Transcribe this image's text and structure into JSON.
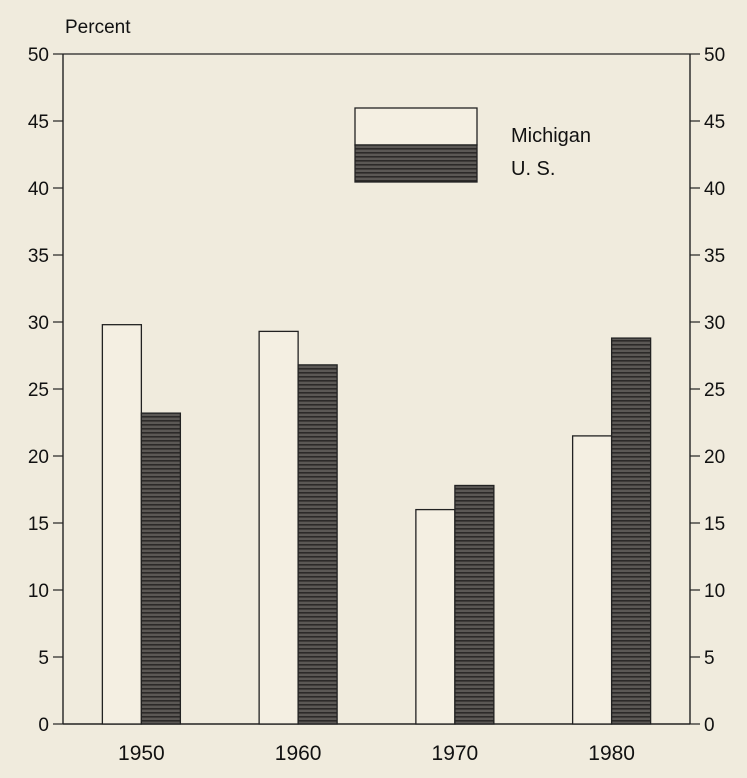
{
  "chart_data": {
    "type": "bar",
    "title": "",
    "ylabel": "Percent",
    "xlabel": "",
    "categories": [
      "1950",
      "1960",
      "1970",
      "1980"
    ],
    "series": [
      {
        "name": "Michigan",
        "values": [
          29.8,
          29.3,
          16.0,
          21.5
        ],
        "color": "#f4efe2",
        "pattern": "open"
      },
      {
        "name": "U. S.",
        "values": [
          23.2,
          26.8,
          17.8,
          28.8
        ],
        "color": "#4a4744",
        "pattern": "dark-hatched"
      }
    ],
    "ylim": [
      0,
      50
    ],
    "yticks": [
      0,
      5,
      10,
      15,
      20,
      25,
      30,
      35,
      40,
      45,
      50
    ],
    "right_axis": true,
    "grid": false,
    "legend_position": "top-right"
  }
}
